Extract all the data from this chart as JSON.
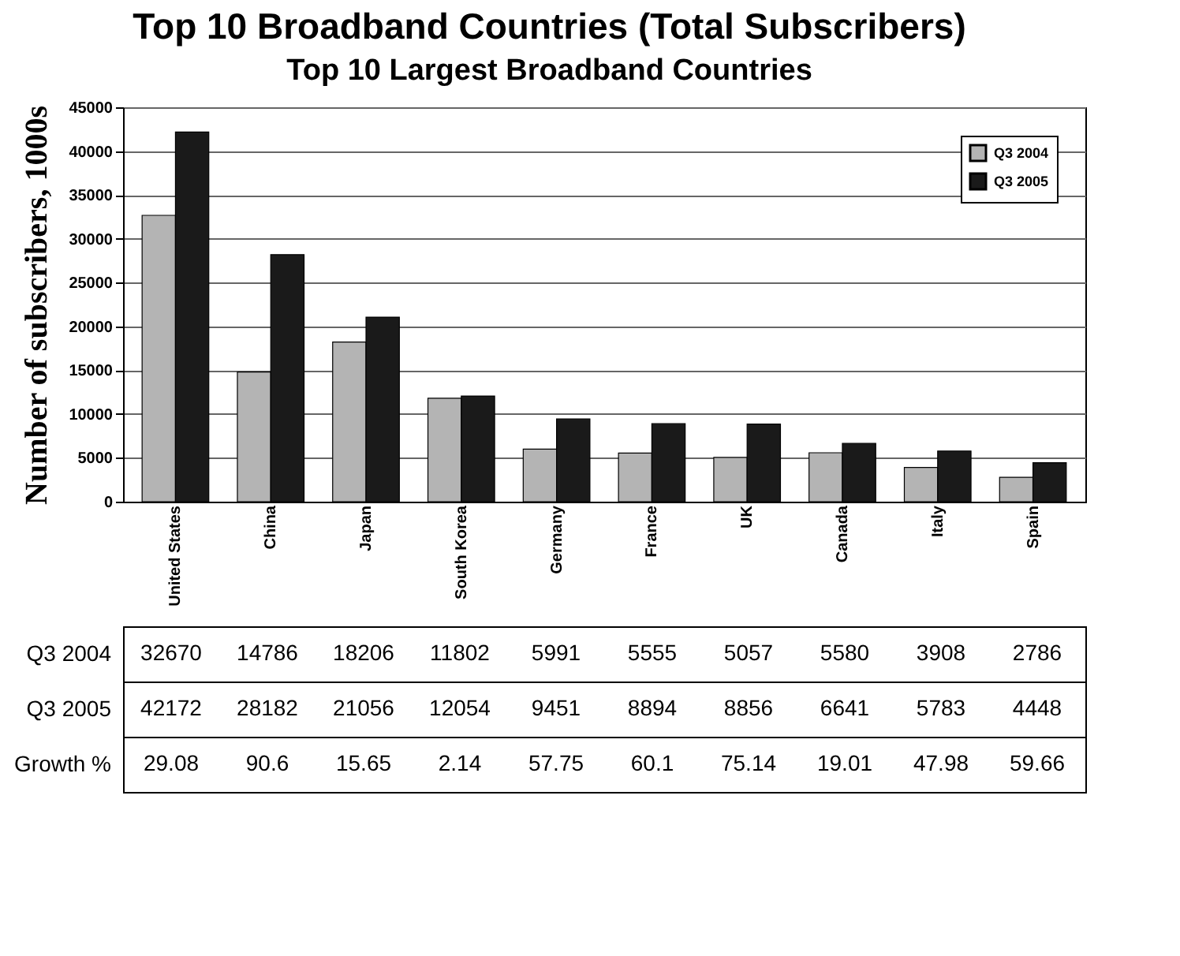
{
  "chart_data": {
    "type": "bar",
    "title": "Top 10 Broadband Countries (Total Subscribers)",
    "subtitle": "Top 10 Largest Broadband Countries",
    "ylabel": "Number of subscribers, 1000s",
    "categories": [
      "United States",
      "China",
      "Japan",
      "South Korea",
      "Germany",
      "France",
      "UK",
      "Canada",
      "Italy",
      "Spain"
    ],
    "series": [
      {
        "name": "Q3 2004",
        "color": "#b4b4b4",
        "values": [
          32670,
          14786,
          18206,
          11802,
          5991,
          5555,
          5057,
          5580,
          3908,
          2786
        ]
      },
      {
        "name": "Q3 2005",
        "color": "#1a1a1a",
        "values": [
          42172,
          28182,
          21056,
          12054,
          9451,
          8894,
          8856,
          6641,
          5783,
          4448
        ]
      }
    ],
    "ylim": [
      0,
      45000
    ],
    "yticks": [
      0,
      5000,
      10000,
      15000,
      20000,
      25000,
      30000,
      35000,
      40000,
      45000
    ],
    "grid": "y",
    "legend": "top right",
    "data_labels": true,
    "annotations": [
      "Growth %",
      "29.08",
      "90.6",
      "15.65",
      "2.14",
      "57.75",
      "60.1",
      "75.14",
      "19.01",
      "47.98",
      "59.66"
    ]
  }
}
